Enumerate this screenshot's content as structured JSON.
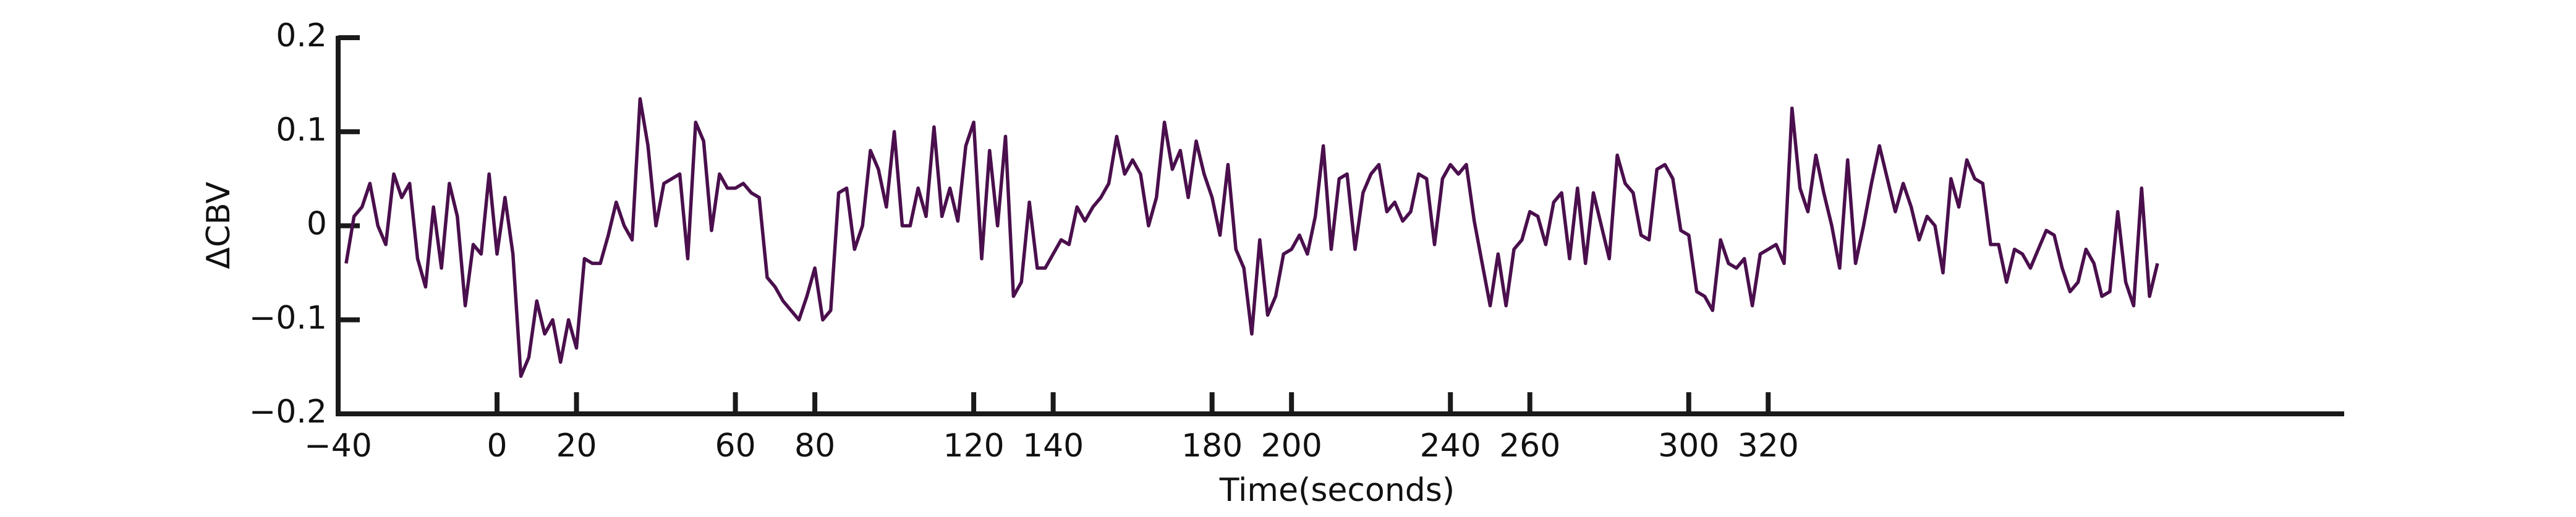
{
  "chart_data": {
    "type": "line",
    "xlabel": "Time(seconds)",
    "ylabel": "ΔCBV",
    "xlim": [
      -40,
      465
    ],
    "ylim": [
      -0.2,
      0.2
    ],
    "xticks": [
      {
        "value": -40,
        "label": "−40"
      },
      0,
      20,
      60,
      80,
      120,
      140,
      180,
      200,
      240,
      260,
      300,
      320
    ],
    "yticks": [
      {
        "value": -0.2,
        "label": "−0.2"
      },
      {
        "value": -0.1,
        "label": "−0.1"
      },
      0,
      0.1,
      0.2
    ],
    "grid": false,
    "x": [
      -38,
      -36,
      -34,
      -32,
      -30,
      -28,
      -26,
      -24,
      -22,
      -20,
      -18,
      -16,
      -14,
      -12,
      -10,
      -8,
      -6,
      -4,
      -2,
      0,
      2,
      4,
      6,
      8,
      10,
      12,
      14,
      16,
      18,
      20,
      22,
      24,
      26,
      28,
      30,
      32,
      34,
      36,
      38,
      40,
      42,
      44,
      46,
      48,
      50,
      52,
      54,
      56,
      58,
      60,
      62,
      64,
      66,
      68,
      70,
      72,
      74,
      76,
      78,
      80,
      82,
      84,
      86,
      88,
      90,
      92,
      94,
      96,
      98,
      100,
      102,
      104,
      106,
      108,
      110,
      112,
      114,
      116,
      118,
      120,
      122,
      124,
      126,
      128,
      130,
      132,
      134,
      136,
      138,
      140,
      142,
      144,
      146,
      148,
      150,
      152,
      154,
      156,
      158,
      160,
      162,
      164,
      166,
      168,
      170,
      172,
      174,
      176,
      178,
      180,
      182,
      184,
      186,
      188,
      190,
      192,
      194,
      196,
      198,
      200,
      202,
      204,
      206,
      208,
      210,
      212,
      214,
      216,
      218,
      220,
      222,
      224,
      226,
      228,
      230,
      232,
      234,
      236,
      238,
      240,
      242,
      244,
      246,
      248,
      250,
      252,
      254,
      256,
      258,
      260,
      262,
      264,
      266,
      268,
      270,
      272,
      274,
      276,
      278,
      280,
      282,
      284,
      286,
      288,
      290,
      292,
      294,
      296,
      298,
      300,
      302,
      304,
      306,
      308,
      310,
      312,
      314,
      316,
      318,
      320,
      322,
      324,
      326,
      328,
      330,
      332,
      334,
      336,
      338,
      340,
      342,
      344,
      346,
      348,
      350,
      352,
      354,
      356,
      358,
      360,
      362,
      364,
      366,
      368,
      370,
      372,
      374,
      376,
      378,
      380,
      382,
      384,
      386,
      388,
      390,
      392,
      394,
      396,
      398,
      400,
      402,
      404,
      406,
      408,
      410,
      412,
      414,
      416,
      418
    ],
    "series": [
      {
        "name": "ΔCBV",
        "color": "#4a0f4c",
        "values": [
          -0.04,
          0.01,
          0.02,
          0.045,
          0,
          -0.02,
          0.055,
          0.03,
          0.045,
          -0.035,
          -0.065,
          0.02,
          -0.045,
          0.045,
          0.01,
          -0.085,
          -0.02,
          -0.03,
          0.055,
          -0.03,
          0.03,
          -0.03,
          -0.16,
          -0.14,
          -0.08,
          -0.115,
          -0.1,
          -0.145,
          -0.1,
          -0.13,
          -0.035,
          -0.04,
          -0.04,
          -0.01,
          0.025,
          0,
          -0.015,
          0.135,
          0.085,
          0,
          0.045,
          0.05,
          0.055,
          -0.035,
          0.11,
          0.09,
          -0.005,
          0.055,
          0.04,
          0.04,
          0.045,
          0.035,
          0.03,
          -0.055,
          -0.065,
          -0.08,
          -0.09,
          -0.1,
          -0.075,
          -0.045,
          -0.1,
          -0.09,
          0.035,
          0.04,
          -0.025,
          0,
          0.08,
          0.06,
          0.02,
          0.1,
          0,
          0,
          0.04,
          0.01,
          0.105,
          0.01,
          0.04,
          0.005,
          0.085,
          0.11,
          -0.035,
          0.08,
          0,
          0.095,
          -0.075,
          -0.06,
          0.025,
          -0.045,
          -0.045,
          -0.03,
          -0.015,
          -0.02,
          0.02,
          0.005,
          0.02,
          0.03,
          0.045,
          0.095,
          0.055,
          0.07,
          0.055,
          0,
          0.03,
          0.11,
          0.06,
          0.08,
          0.03,
          0.09,
          0.055,
          0.03,
          -0.01,
          0.065,
          -0.025,
          -0.045,
          -0.115,
          -0.015,
          -0.095,
          -0.075,
          -0.03,
          -0.025,
          -0.01,
          -0.03,
          0.01,
          0.085,
          -0.025,
          0.05,
          0.055,
          -0.025,
          0.035,
          0.055,
          0.065,
          0.015,
          0.025,
          0.005,
          0.015,
          0.055,
          0.05,
          -0.02,
          0.05,
          0.065,
          0.055,
          0.065,
          0.005,
          -0.04,
          -0.085,
          -0.03,
          -0.085,
          -0.025,
          -0.015,
          0.015,
          0.01,
          -0.02,
          0.025,
          0.035,
          -0.035,
          0.04,
          -0.04,
          0.035,
          0,
          -0.035,
          0.075,
          0.045,
          0.035,
          -0.01,
          -0.015,
          0.06,
          0.065,
          0.05,
          -0.005,
          -0.01,
          -0.07,
          -0.075,
          -0.09,
          -0.015,
          -0.04,
          -0.045,
          -0.035,
          -0.085,
          -0.03,
          -0.025,
          -0.02,
          -0.04,
          0.125,
          0.04,
          0.015,
          0.075,
          0.035,
          0,
          -0.045,
          0.07,
          -0.04,
          0,
          0.045,
          0.085,
          0.05,
          0.015,
          0.045,
          0.02,
          -0.015,
          0.01,
          0,
          -0.05,
          0.05,
          0.02,
          0.07,
          0.05,
          0.045,
          -0.02,
          -0.02,
          -0.06,
          -0.025,
          -0.03,
          -0.045,
          -0.025,
          -0.005,
          -0.01,
          -0.045,
          -0.07,
          -0.06,
          -0.025,
          -0.04,
          -0.075,
          -0.07,
          0.015,
          -0.06,
          -0.085,
          0.04,
          -0.075,
          -0.04
        ]
      }
    ]
  }
}
